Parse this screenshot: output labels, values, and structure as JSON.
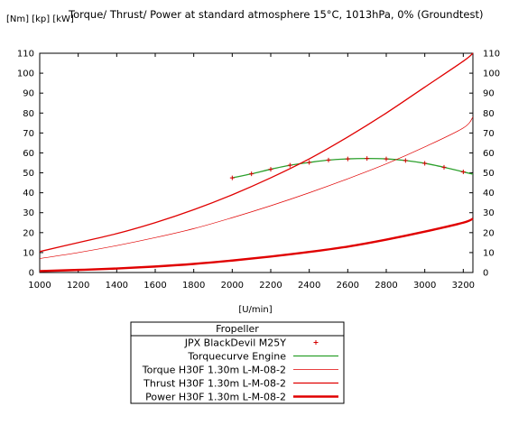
{
  "chart_data": {
    "type": "line",
    "title": "Torque/ Thrust/ Power at standard atmosphere 15°C, 1013hPa, 0% (Groundtest)",
    "ylabel_units": "[Nm] [kp] [kW]",
    "xlabel": "[U/min]",
    "xlim": [
      1000,
      3250
    ],
    "ylim": [
      0,
      110
    ],
    "x_ticks": [
      1000,
      1200,
      1400,
      1600,
      1800,
      2000,
      2200,
      2400,
      2600,
      2800,
      3000,
      3200
    ],
    "y_ticks": [
      0,
      10,
      20,
      30,
      40,
      50,
      60,
      70,
      80,
      90,
      100,
      110
    ],
    "grid": false,
    "legend": {
      "title": "Fropeller",
      "placement": "bottom-center"
    },
    "series": [
      {
        "name": "JPX BlackDevil M25Y",
        "style": "points",
        "marker": "+",
        "color": "#d40000",
        "x": [
          2000,
          2100,
          2200,
          2300,
          2400,
          2500,
          2600,
          2700,
          2800,
          2900,
          3000,
          3100,
          3200
        ],
        "y": [
          47.5,
          49.5,
          51.8,
          53.8,
          55.2,
          56.4,
          57.0,
          57.2,
          57.0,
          56.2,
          54.8,
          52.8,
          50.5
        ]
      },
      {
        "name": "Torquecurve Engine",
        "style": "line",
        "color": "#2ca02c",
        "x": [
          2000,
          2100,
          2200,
          2300,
          2400,
          2500,
          2600,
          2700,
          2800,
          2900,
          3000,
          3100,
          3200,
          3250
        ],
        "y": [
          47.5,
          49.5,
          51.8,
          53.8,
          55.2,
          56.4,
          57.0,
          57.2,
          57.0,
          56.2,
          54.8,
          52.8,
          50.5,
          49.3
        ]
      },
      {
        "name": "Torque H30F 1.30m L-M-08-2",
        "style": "thin-line",
        "color": "#e00000",
        "x": [
          1000,
          1200,
          1400,
          1600,
          1800,
          2000,
          2200,
          2400,
          2600,
          2800,
          3000,
          3200,
          3250
        ],
        "y": [
          7.0,
          10.0,
          13.5,
          17.5,
          22.0,
          27.5,
          33.5,
          40.0,
          47.0,
          54.5,
          63.0,
          72.5,
          78.0
        ]
      },
      {
        "name": "Thrust H30F 1.30m L-M-08-2",
        "style": "line",
        "color": "#e00000",
        "x": [
          1000,
          1200,
          1400,
          1600,
          1800,
          2000,
          2200,
          2400,
          2600,
          2800,
          3000,
          3200,
          3250
        ],
        "y": [
          10.5,
          15.0,
          19.5,
          25.0,
          31.5,
          39.0,
          47.5,
          57.0,
          68.0,
          80.0,
          93.0,
          106.0,
          110.0
        ]
      },
      {
        "name": "Power H30F 1.30m L-M-08-2",
        "style": "thick-line",
        "color": "#e00000",
        "x": [
          1000,
          1200,
          1400,
          1600,
          1800,
          2000,
          2200,
          2400,
          2600,
          2800,
          3000,
          3200,
          3250
        ],
        "y": [
          0.7,
          1.3,
          2.0,
          3.0,
          4.3,
          6.0,
          8.0,
          10.3,
          13.0,
          16.5,
          20.5,
          25.0,
          27.0
        ]
      }
    ]
  }
}
